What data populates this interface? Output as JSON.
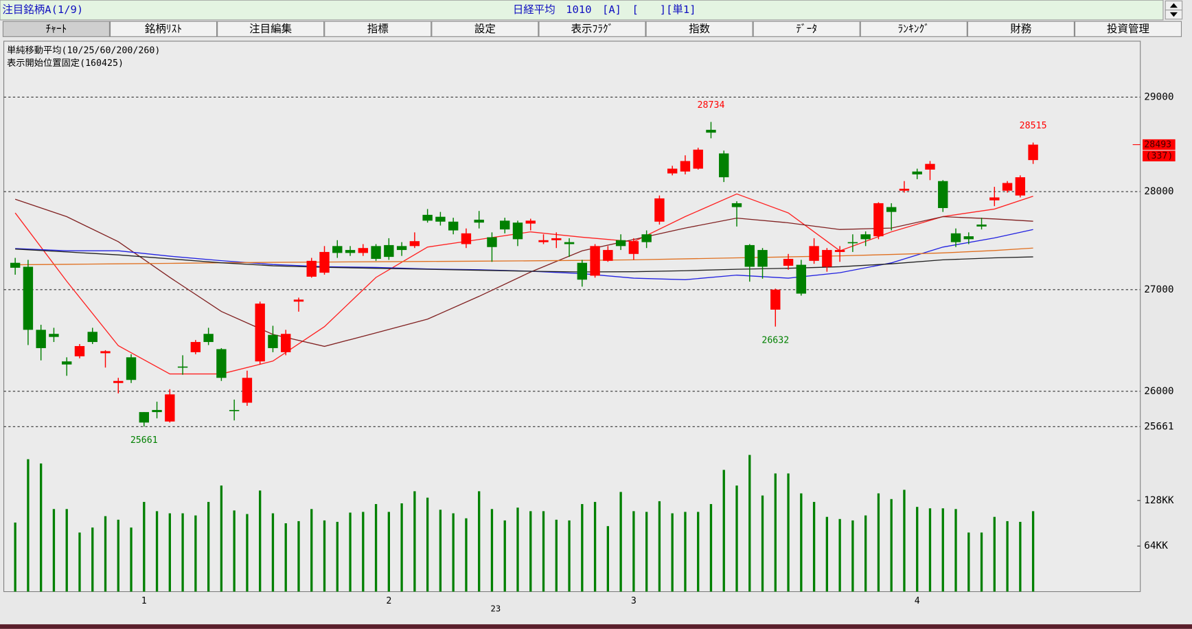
{
  "header": {
    "title": "注目銘柄A(1/9)",
    "info": "日経平均　1010　[A]　[　　][単1]"
  },
  "tabs": [
    "ﾁｬｰﾄ",
    "銘柄ﾘｽﾄ",
    "注目編集",
    "指標",
    "設定",
    "表示ﾌﾗｸﾞ",
    "指数",
    "ﾃﾞｰﾀ",
    "ﾗﾝｷﾝｸﾞ",
    "財務",
    "投資管理"
  ],
  "chart_data": {
    "type": "candlestick",
    "ma_label": "単純移動平均(10/25/60/200/260)",
    "fixed_label": "表示開始位置固定(160425)",
    "log_scale": true,
    "grid": true,
    "up_color": "#ff0000",
    "down_color": "#008000",
    "volume_color": "#008000",
    "categories": [
      null,
      null,
      null,
      null,
      null,
      null,
      null,
      null,
      null,
      null,
      "1",
      null,
      null,
      null,
      null,
      null,
      null,
      null,
      null,
      null,
      null,
      null,
      null,
      null,
      null,
      null,
      null,
      null,
      null,
      "2",
      null,
      null,
      null,
      null,
      null,
      null,
      null,
      null,
      null,
      null,
      null,
      null,
      null,
      null,
      null,
      null,
      null,
      null,
      "3",
      null,
      null,
      null,
      null,
      null,
      null,
      null,
      null,
      null,
      null,
      null,
      null,
      null,
      null,
      null,
      null,
      null,
      null,
      null,
      null,
      null,
      "4",
      null,
      null,
      null,
      null,
      null,
      null,
      null,
      null,
      null
    ],
    "year_label": "23",
    "candles": {
      "open": [
        27270,
        27230,
        26600,
        26560,
        26290,
        26340,
        26580,
        26370,
        26080,
        26330,
        25800,
        25820,
        25710,
        26240,
        26380,
        26560,
        26410,
        25820,
        25890,
        26290,
        26550,
        26380,
        26880,
        27130,
        27170,
        27440,
        27400,
        27370,
        27440,
        27450,
        27440,
        27440,
        27760,
        27740,
        27690,
        27460,
        27710,
        27530,
        27700,
        27680,
        27670,
        27480,
        27500,
        27480,
        27270,
        27140,
        27290,
        27500,
        27360,
        27560,
        27690,
        28190,
        28210,
        28240,
        28650,
        28400,
        27880,
        27450,
        27400,
        26800,
        27240,
        27250,
        27290,
        27230,
        27380,
        27480,
        27560,
        27540,
        27840,
        28010,
        28210,
        28230,
        28110,
        27570,
        27540,
        27660,
        27910,
        28010,
        27960,
        28330
      ],
      "high": [
        27320,
        27300,
        26650,
        26620,
        26330,
        26460,
        26620,
        26400,
        26130,
        26360,
        25800,
        25900,
        26020,
        26350,
        26500,
        26620,
        26420,
        25920,
        26200,
        26880,
        26640,
        26600,
        26920,
        27320,
        27440,
        27500,
        27440,
        27460,
        27460,
        27520,
        27480,
        27580,
        27820,
        27790,
        27730,
        27620,
        27800,
        27580,
        27730,
        27700,
        27720,
        27560,
        27580,
        27520,
        27300,
        27460,
        27440,
        27560,
        27520,
        27600,
        27960,
        28270,
        28380,
        28460,
        28734,
        28430,
        27900,
        27460,
        27420,
        27010,
        27360,
        27300,
        27520,
        27420,
        27440,
        27560,
        27590,
        27890,
        27880,
        28110,
        28240,
        28320,
        28120,
        27620,
        27580,
        27730,
        28050,
        28110,
        28170,
        28515
      ],
      "low": [
        27150,
        26450,
        26300,
        26480,
        26150,
        26320,
        26460,
        26230,
        25980,
        26080,
        25661,
        25740,
        25700,
        26160,
        26360,
        26450,
        26100,
        25720,
        25860,
        26260,
        26380,
        26350,
        26780,
        27120,
        27150,
        27320,
        27340,
        27340,
        27290,
        27300,
        27340,
        27420,
        27680,
        27650,
        27560,
        27420,
        27620,
        27280,
        27570,
        27440,
        27600,
        27460,
        27420,
        27330,
        27030,
        27120,
        27280,
        27400,
        27300,
        27420,
        27660,
        28170,
        28180,
        28230,
        28560,
        28100,
        27640,
        27080,
        27110,
        26632,
        27200,
        26940,
        27260,
        27180,
        27280,
        27380,
        27440,
        27510,
        27600,
        27990,
        28130,
        28120,
        27790,
        27430,
        27460,
        27610,
        27850,
        27990,
        27940,
        28290
      ],
      "close": [
        27220,
        26600,
        26420,
        26530,
        26260,
        26440,
        26480,
        26390,
        26100,
        26110,
        25700,
        25800,
        25970,
        26230,
        26480,
        26480,
        26130,
        25810,
        26130,
        26860,
        26420,
        26560,
        26900,
        27290,
        27380,
        27370,
        27370,
        27420,
        27310,
        27330,
        27400,
        27490,
        27700,
        27690,
        27600,
        27570,
        27680,
        27430,
        27610,
        27510,
        27700,
        27500,
        27520,
        27460,
        27100,
        27440,
        27400,
        27440,
        27490,
        27480,
        27930,
        28240,
        28320,
        28440,
        28620,
        28150,
        27840,
        27230,
        27230,
        27000,
        27310,
        26960,
        27440,
        27400,
        27400,
        27470,
        27510,
        27880,
        27790,
        28030,
        28180,
        28290,
        27830,
        27480,
        27510,
        27640,
        27940,
        28090,
        28150,
        28493
      ]
    },
    "volume": [
      97,
      186,
      180,
      116,
      116,
      83,
      90,
      106,
      101,
      90,
      126,
      113,
      110,
      110,
      107,
      126,
      149,
      114,
      109,
      142,
      110,
      96,
      99,
      116,
      100,
      98,
      111,
      112,
      123,
      112,
      124,
      141,
      132,
      115,
      110,
      103,
      141,
      116,
      100,
      118,
      113,
      113,
      101,
      100,
      123,
      126,
      92,
      140,
      113,
      112,
      127,
      110,
      112,
      112,
      123,
      171,
      149,
      192,
      135,
      166,
      166,
      138,
      126,
      105,
      102,
      100,
      107,
      138,
      130,
      143,
      119,
      117,
      117,
      116,
      83,
      83,
      105,
      99,
      98,
      113
    ],
    "ma_x": [
      0,
      4,
      8,
      12,
      16,
      20,
      24,
      28,
      32,
      36,
      40,
      44,
      48,
      52,
      56,
      60,
      64,
      68,
      72,
      76,
      79
    ],
    "moving_averages": [
      {
        "color": "#ff2020",
        "values": [
          27780,
          27084,
          26444,
          26168,
          26168,
          26294,
          26631,
          27123,
          27430,
          27507,
          27585,
          27531,
          27485,
          27742,
          27976,
          27780,
          27392,
          27585,
          27742,
          27820,
          27953
        ]
      },
      {
        "color": "#802020",
        "values": [
          27921,
          27741,
          27485,
          27123,
          26782,
          26555,
          26437,
          26570,
          26706,
          26933,
          27177,
          27392,
          27507,
          27624,
          27726,
          27678,
          27609,
          27624,
          27741,
          27718,
          27694
        ]
      },
      {
        "color": "#2020e0",
        "values": [
          27415,
          27392,
          27392,
          27337,
          27292,
          27253,
          27231,
          27223,
          27208,
          27200,
          27185,
          27161,
          27115,
          27100,
          27146,
          27115,
          27170,
          27269,
          27430,
          27523,
          27609
        ]
      },
      {
        "color": "#e07020",
        "values": [
          27250,
          27255,
          27260,
          27265,
          27270,
          27275,
          27278,
          27281,
          27284,
          27287,
          27290,
          27295,
          27300,
          27310,
          27320,
          27330,
          27340,
          27355,
          27370,
          27395,
          27420
        ]
      },
      {
        "color": "#202020",
        "values": [
          27410,
          27380,
          27350,
          27310,
          27270,
          27240,
          27225,
          27215,
          27205,
          27195,
          27185,
          27178,
          27180,
          27190,
          27205,
          27215,
          27230,
          27260,
          27300,
          27320,
          27330
        ]
      }
    ],
    "ylim": [
      25661,
      29600
    ],
    "yticks": [
      25661,
      26000,
      27000,
      28000,
      29000
    ],
    "volume_ylim": [
      0,
      220
    ],
    "volume_yticks": [
      {
        "value": 64,
        "label": "64KK"
      },
      {
        "value": 128,
        "label": "128KK"
      }
    ],
    "annotations": [
      {
        "candle": 10,
        "value": 25661,
        "color": "#008000",
        "position": "below"
      },
      {
        "candle": 54,
        "value": 28734,
        "color": "#ff0000",
        "position": "above"
      },
      {
        "candle": 59,
        "value": 26632,
        "color": "#008000",
        "position": "below"
      },
      {
        "candle": 79,
        "value": 28515,
        "color": "#ff0000",
        "position": "above"
      }
    ],
    "last_price": 28493,
    "change": 337,
    "change_label": "(337)"
  }
}
